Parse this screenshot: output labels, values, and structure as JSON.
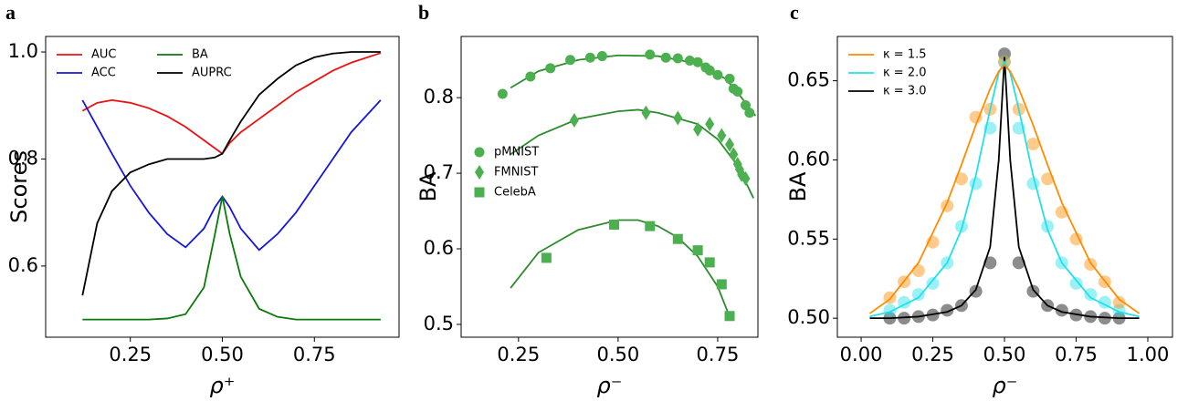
{
  "chart_data": [
    {
      "panel": "a",
      "type": "line",
      "xlabel": "ρ⁺",
      "ylabel": "Scores",
      "xlim": [
        0.02,
        0.98
      ],
      "ylim": [
        0.467,
        1.029
      ],
      "xticks": [
        0.25,
        {
          "value": 0.5,
          "label": "0.50"
        },
        0.75
      ],
      "yticks": [
        0.6,
        0.8,
        {
          "value": 1.0,
          "label": "1.0"
        }
      ],
      "legend": "upper left",
      "legend_ncol": 2,
      "series": [
        {
          "name": "AUC",
          "color": "#ee1111",
          "style": "line",
          "x": [
            0.12,
            0.16,
            0.2,
            0.25,
            0.3,
            0.35,
            0.4,
            0.45,
            0.48,
            0.5,
            0.52,
            0.55,
            0.6,
            0.65,
            0.7,
            0.75,
            0.8,
            0.85,
            0.93
          ],
          "values": [
            0.89,
            0.905,
            0.91,
            0.905,
            0.895,
            0.88,
            0.86,
            0.835,
            0.82,
            0.81,
            0.83,
            0.85,
            0.875,
            0.9,
            0.925,
            0.945,
            0.965,
            0.98,
            0.998
          ]
        },
        {
          "name": "ACC",
          "color": "#1515dd",
          "style": "line",
          "x": [
            0.12,
            0.16,
            0.2,
            0.25,
            0.3,
            0.35,
            0.4,
            0.45,
            0.48,
            0.5,
            0.52,
            0.55,
            0.6,
            0.65,
            0.7,
            0.75,
            0.8,
            0.85,
            0.93
          ],
          "values": [
            0.91,
            0.86,
            0.81,
            0.75,
            0.7,
            0.66,
            0.635,
            0.67,
            0.71,
            0.73,
            0.71,
            0.67,
            0.63,
            0.66,
            0.7,
            0.75,
            0.8,
            0.85,
            0.91
          ]
        },
        {
          "name": "BA",
          "color": "#0a7a0a",
          "style": "line",
          "x": [
            0.12,
            0.16,
            0.2,
            0.25,
            0.3,
            0.35,
            0.4,
            0.45,
            0.48,
            0.5,
            0.52,
            0.55,
            0.6,
            0.65,
            0.7,
            0.75,
            0.8,
            0.85,
            0.93
          ],
          "values": [
            0.5,
            0.5,
            0.5,
            0.5,
            0.5,
            0.502,
            0.51,
            0.56,
            0.66,
            0.73,
            0.66,
            0.58,
            0.52,
            0.505,
            0.5,
            0.5,
            0.5,
            0.5,
            0.5
          ]
        },
        {
          "name": "AUPRC",
          "color": "#000000",
          "style": "line",
          "x": [
            0.12,
            0.16,
            0.2,
            0.25,
            0.3,
            0.35,
            0.4,
            0.45,
            0.48,
            0.5,
            0.52,
            0.55,
            0.6,
            0.65,
            0.7,
            0.75,
            0.8,
            0.85,
            0.93
          ],
          "values": [
            0.545,
            0.68,
            0.74,
            0.775,
            0.79,
            0.8,
            0.8,
            0.8,
            0.803,
            0.81,
            0.835,
            0.87,
            0.92,
            0.95,
            0.975,
            0.99,
            0.997,
            1.0,
            1.0
          ]
        }
      ]
    },
    {
      "panel": "b",
      "type": "line",
      "xlabel": "ρ⁻",
      "ylabel": "BA",
      "xlim": [
        0.106,
        0.851
      ],
      "ylim": [
        0.483,
        0.881
      ],
      "xticks": [
        0.25,
        {
          "value": 0.5,
          "label": "0.50"
        },
        0.75
      ],
      "yticks": [
        0.5,
        0.6,
        0.7,
        0.8
      ],
      "legend": "center left",
      "legend_ncol": 1,
      "series": [
        {
          "name": "pMNIST",
          "color": "#4caf50",
          "style": "marker",
          "marker": "circle",
          "x": [
            0.21,
            0.28,
            0.33,
            0.38,
            0.43,
            0.46,
            0.58,
            0.62,
            0.65,
            0.68,
            0.7,
            0.72,
            0.73,
            0.75,
            0.78,
            0.79,
            0.8,
            0.82,
            0.83
          ],
          "values": [
            0.805,
            0.828,
            0.839,
            0.85,
            0.853,
            0.855,
            0.857,
            0.853,
            0.852,
            0.849,
            0.847,
            0.84,
            0.836,
            0.83,
            0.825,
            0.812,
            0.808,
            0.79,
            0.78
          ]
        },
        {
          "name": "FMNIST",
          "color": "#4caf50",
          "style": "marker",
          "marker": "diamond",
          "x": [
            0.39,
            0.57,
            0.65,
            0.7,
            0.73,
            0.76,
            0.78,
            0.79,
            0.8,
            0.805,
            0.81,
            0.82
          ],
          "values": [
            0.77,
            0.78,
            0.773,
            0.758,
            0.765,
            0.75,
            0.738,
            0.725,
            0.712,
            0.705,
            0.698,
            0.693
          ]
        },
        {
          "name": "CelebA",
          "color": "#4caf50",
          "style": "marker",
          "marker": "square",
          "x": [
            0.32,
            0.49,
            0.58,
            0.65,
            0.7,
            0.73,
            0.76,
            0.78
          ],
          "values": [
            0.588,
            0.632,
            0.63,
            0.613,
            0.598,
            0.582,
            0.553,
            0.511
          ]
        },
        {
          "color": "#2e8b2e",
          "style": "line",
          "x": [
            0.23,
            0.3,
            0.4,
            0.5,
            0.6,
            0.7,
            0.77,
            0.81,
            0.845
          ],
          "values": [
            0.813,
            0.835,
            0.85,
            0.856,
            0.855,
            0.845,
            0.825,
            0.8,
            0.776
          ]
        },
        {
          "color": "#2e8b2e",
          "style": "line",
          "x": [
            0.23,
            0.3,
            0.4,
            0.5,
            0.55,
            0.6,
            0.7,
            0.75,
            0.8,
            0.84
          ],
          "values": [
            0.725,
            0.75,
            0.772,
            0.782,
            0.784,
            0.78,
            0.765,
            0.745,
            0.71,
            0.667
          ]
        },
        {
          "color": "#2e8b2e",
          "style": "line",
          "x": [
            0.23,
            0.3,
            0.4,
            0.5,
            0.55,
            0.6,
            0.65,
            0.7,
            0.75,
            0.78
          ],
          "values": [
            0.548,
            0.595,
            0.625,
            0.638,
            0.638,
            0.63,
            0.615,
            0.59,
            0.55,
            0.51
          ]
        }
      ]
    },
    {
      "panel": "c",
      "type": "line",
      "xlabel": "ρ⁻",
      "ylabel": "BA",
      "xlim": [
        -0.083,
        1.086
      ],
      "ylim": [
        0.488,
        0.678
      ],
      "xticks": [
        {
          "value": 0.0,
          "label": "0.00"
        },
        0.25,
        {
          "value": 0.5,
          "label": "0.50"
        },
        0.75,
        {
          "value": 1.0,
          "label": "1.00"
        }
      ],
      "yticks": [
        {
          "value": 0.5,
          "label": "0.50"
        },
        0.55,
        {
          "value": 0.6,
          "label": "0.60"
        },
        0.65
      ],
      "legend": "upper left",
      "legend_ncol": 1,
      "series": [
        {
          "name": "κ = 1.5",
          "color": "#ff8c00",
          "style": "line",
          "x": [
            0.03,
            0.1,
            0.2,
            0.3,
            0.35,
            0.4,
            0.45,
            0.48,
            0.5,
            0.52,
            0.55,
            0.6,
            0.65,
            0.7,
            0.8,
            0.9,
            0.97
          ],
          "values": [
            0.503,
            0.512,
            0.535,
            0.573,
            0.597,
            0.622,
            0.645,
            0.656,
            0.66,
            0.656,
            0.645,
            0.622,
            0.597,
            0.573,
            0.535,
            0.512,
            0.503
          ]
        },
        {
          "name": "κ = 2.0",
          "color": "#22e0e8",
          "style": "line",
          "x": [
            0.03,
            0.1,
            0.2,
            0.3,
            0.35,
            0.4,
            0.45,
            0.48,
            0.5,
            0.52,
            0.55,
            0.6,
            0.65,
            0.7,
            0.8,
            0.9,
            0.97
          ],
          "values": [
            0.501,
            0.504,
            0.513,
            0.535,
            0.556,
            0.59,
            0.632,
            0.655,
            0.662,
            0.655,
            0.632,
            0.59,
            0.556,
            0.535,
            0.513,
            0.504,
            0.501
          ]
        },
        {
          "name": "κ = 3.0",
          "color": "#000000",
          "style": "line",
          "x": [
            0.03,
            0.1,
            0.2,
            0.3,
            0.35,
            0.4,
            0.45,
            0.48,
            0.5,
            0.52,
            0.55,
            0.6,
            0.65,
            0.7,
            0.8,
            0.9,
            0.97
          ],
          "values": [
            0.5,
            0.5,
            0.501,
            0.504,
            0.508,
            0.518,
            0.545,
            0.6,
            0.665,
            0.6,
            0.545,
            0.518,
            0.508,
            0.504,
            0.501,
            0.5,
            0.5
          ]
        },
        {
          "color": "#ff8c00",
          "style": "marker",
          "marker": "circle",
          "alpha": 0.45,
          "x": [
            0.1,
            0.15,
            0.2,
            0.25,
            0.3,
            0.35,
            0.4,
            0.45,
            0.5,
            0.55,
            0.6,
            0.65,
            0.7,
            0.75,
            0.8,
            0.85,
            0.9
          ],
          "values": [
            0.513,
            0.523,
            0.53,
            0.548,
            0.571,
            0.588,
            0.627,
            0.632,
            0.662,
            0.632,
            0.61,
            0.588,
            0.567,
            0.55,
            0.534,
            0.523,
            0.51
          ]
        },
        {
          "color": "#22e0e8",
          "style": "marker",
          "marker": "circle",
          "alpha": 0.45,
          "x": [
            0.1,
            0.15,
            0.2,
            0.25,
            0.3,
            0.35,
            0.4,
            0.45,
            0.5,
            0.55,
            0.6,
            0.65,
            0.7,
            0.75,
            0.8,
            0.85,
            0.9
          ],
          "values": [
            0.505,
            0.51,
            0.515,
            0.522,
            0.535,
            0.558,
            0.585,
            0.62,
            0.662,
            0.62,
            0.585,
            0.558,
            0.535,
            0.522,
            0.515,
            0.51,
            0.505
          ]
        },
        {
          "color": "#000000",
          "style": "marker",
          "marker": "circle",
          "alpha": 0.45,
          "x": [
            0.1,
            0.15,
            0.2,
            0.25,
            0.3,
            0.35,
            0.4,
            0.45,
            0.5,
            0.55,
            0.6,
            0.65,
            0.7,
            0.75,
            0.8,
            0.85,
            0.9
          ],
          "values": [
            0.5,
            0.5,
            0.501,
            0.502,
            0.505,
            0.508,
            0.517,
            0.535,
            0.667,
            0.535,
            0.517,
            0.508,
            0.505,
            0.502,
            0.501,
            0.5,
            0.5
          ]
        }
      ]
    }
  ]
}
